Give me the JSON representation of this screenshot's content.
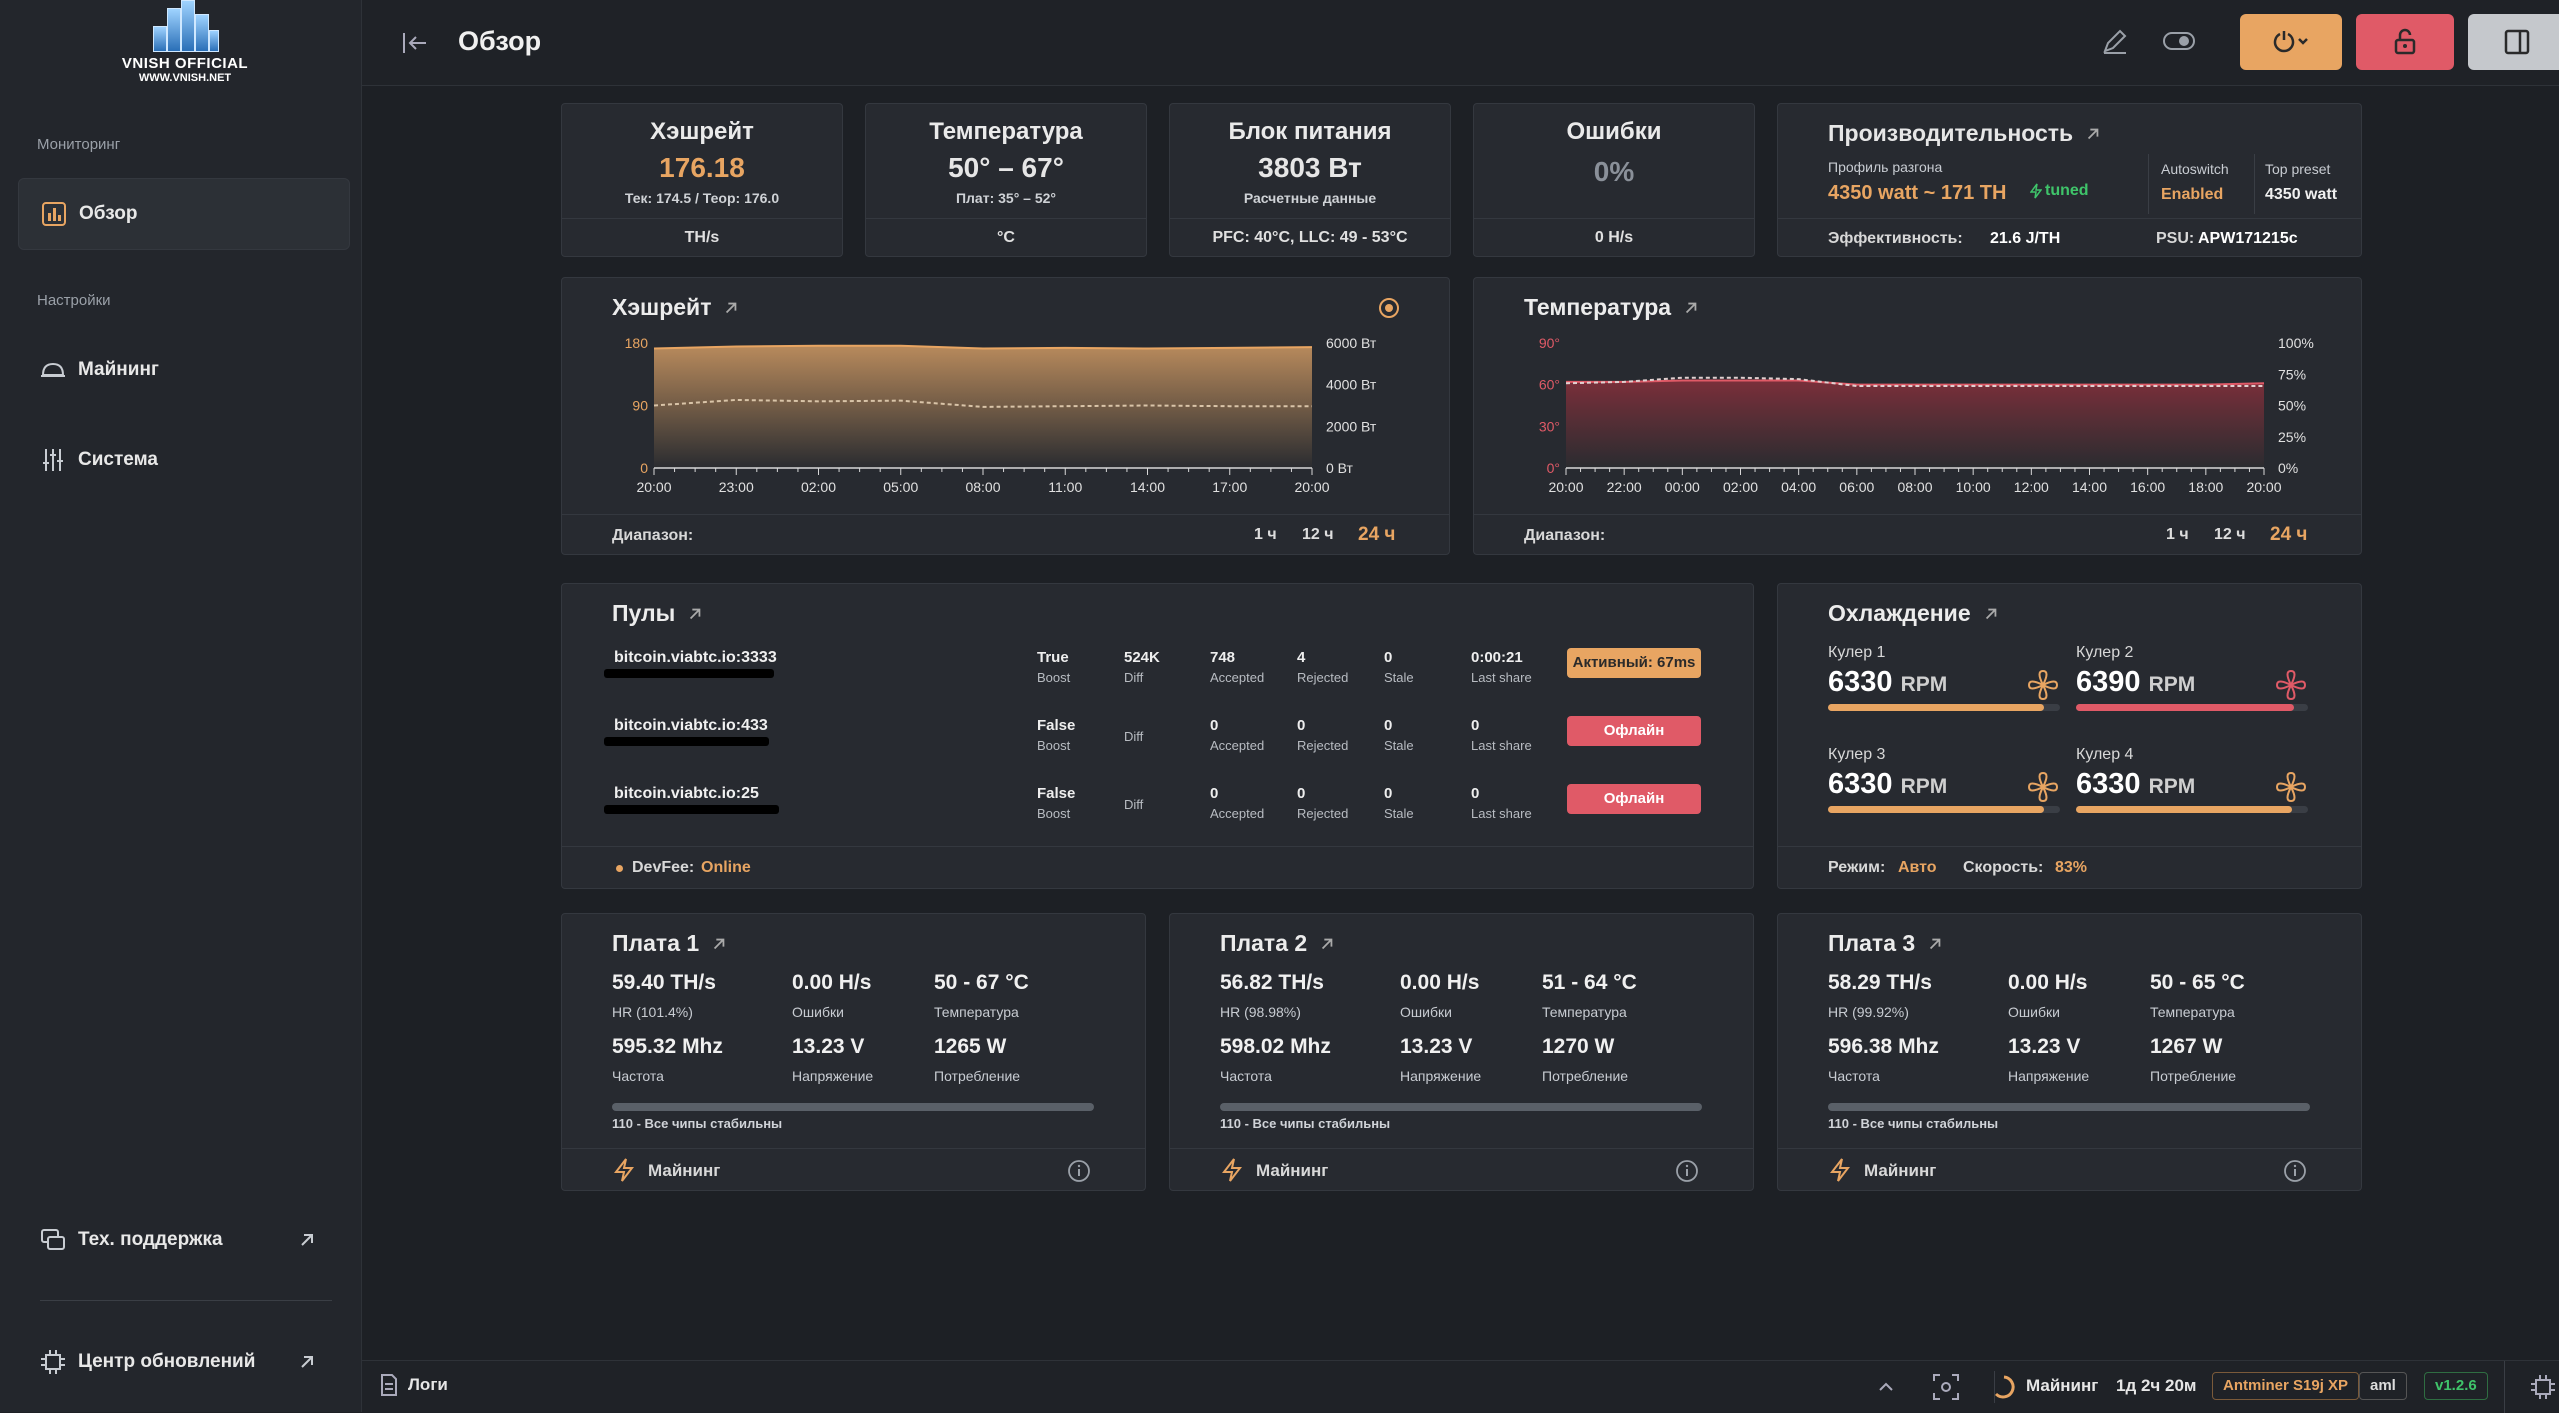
{
  "brand": {
    "logo_line1": "VNISH OFFICIAL",
    "logo_line2": "WWW.VNISH.NET"
  },
  "sidebar": {
    "section_monitoring": "Мониторинг",
    "section_settings": "Настройки",
    "items": [
      {
        "label": "Обзор"
      },
      {
        "label": "Майнинг"
      },
      {
        "label": "Система"
      }
    ],
    "support": "Тех. поддержка",
    "updates": "Центр обновлений"
  },
  "header": {
    "title": "Обзор"
  },
  "stats": {
    "hashrate": {
      "title": "Хэшрейт",
      "value": "176.18",
      "sub": "Тек: 174.5 / Теор: 176.0",
      "unit": "TH/s"
    },
    "temperature": {
      "title": "Температура",
      "value": "50° – 67°",
      "sub": "Плат: 35° – 52°",
      "unit": "°C"
    },
    "psu": {
      "title": "Блок питания",
      "value": "3803 Вт",
      "sub": "Расчетные данные",
      "foot": "PFC: 40°C, LLC: 49 - 53°C"
    },
    "errors": {
      "title": "Ошибки",
      "value": "0%",
      "unit": "0 H/s"
    },
    "perf": {
      "title": "Производительность",
      "profile_label": "Профиль разгона",
      "profile_value": "4350 watt ~ 171 TH",
      "tuned": "tuned",
      "autoswitch_label": "Autoswitch",
      "autoswitch_value": "Enabled",
      "preset_label": "Top preset",
      "preset_value": "4350 watt",
      "eff_label": "Эффективность:",
      "eff_value": "21.6 J/TH",
      "psu_label": "PSU:",
      "psu_value": "APW171215c"
    }
  },
  "hash_chart": {
    "title": "Хэшрейт",
    "y_left": [
      "180",
      "90",
      "0"
    ],
    "y_right": [
      "6000 Вт",
      "4000 Вт",
      "2000 Вт",
      "0 Вт"
    ],
    "x": [
      "20:00",
      "23:00",
      "02:00",
      "05:00",
      "08:00",
      "11:00",
      "14:00",
      "17:00",
      "20:00"
    ],
    "range_label": "Диапазон:",
    "ranges": [
      "1 ч",
      "12 ч",
      "24 ч"
    ]
  },
  "temp_chart": {
    "title": "Температура",
    "y_left": [
      "90°",
      "60°",
      "30°",
      "0°"
    ],
    "y_right": [
      "100%",
      "75%",
      "50%",
      "25%",
      "0%"
    ],
    "x": [
      "20:00",
      "22:00",
      "00:00",
      "02:00",
      "04:00",
      "06:00",
      "08:00",
      "10:00",
      "12:00",
      "14:00",
      "16:00",
      "18:00",
      "20:00"
    ],
    "range_label": "Диапазон:",
    "ranges": [
      "1 ч",
      "12 ч",
      "24 ч"
    ]
  },
  "chart_data": [
    {
      "type": "area",
      "title": "Хэшрейт",
      "categories": [
        "20:00",
        "23:00",
        "02:00",
        "05:00",
        "08:00",
        "11:00",
        "14:00",
        "17:00",
        "20:00"
      ],
      "series": [
        {
          "values": [
            172,
            175,
            176,
            176,
            172,
            173,
            172,
            173,
            174
          ]
        },
        {
          "values": [
            90,
            98,
            96,
            97,
            88,
            89,
            90,
            89,
            89
          ]
        }
      ],
      "ylim": [
        0,
        180
      ]
    },
    {
      "type": "area",
      "title": "Температура",
      "categories": [
        "20:00",
        "22:00",
        "00:00",
        "02:00",
        "04:00",
        "06:00",
        "08:00",
        "10:00",
        "12:00",
        "14:00",
        "16:00",
        "18:00",
        "20:00"
      ],
      "series": [
        {
          "values": [
            62,
            62,
            63,
            63,
            63,
            60,
            60,
            60,
            60,
            60,
            60,
            60,
            61
          ]
        },
        {
          "values": [
            61,
            62,
            65,
            65,
            64,
            59,
            59,
            59,
            59,
            59,
            59,
            59,
            59
          ]
        }
      ],
      "ylim": [
        0,
        90
      ]
    }
  ],
  "pools": {
    "title": "Пулы",
    "labels": {
      "boost": "Boost",
      "diff": "Diff",
      "accepted": "Accepted",
      "rejected": "Rejected",
      "stale": "Stale",
      "last_share": "Last share"
    },
    "rows": [
      {
        "host": "bitcoin.viabtc.io:3333",
        "boost": "True",
        "diff": "524K",
        "accepted": "748",
        "rejected": "4",
        "stale": "0",
        "last_share": "0:00:21",
        "status": "Активный: 67ms"
      },
      {
        "host": "bitcoin.viabtc.io:433",
        "boost": "False",
        "diff": "",
        "accepted": "0",
        "rejected": "0",
        "stale": "0",
        "last_share": "0",
        "status": "Офлайн"
      },
      {
        "host": "bitcoin.viabtc.io:25",
        "boost": "False",
        "diff": "",
        "accepted": "0",
        "rejected": "0",
        "stale": "0",
        "last_share": "0",
        "status": "Офлайн"
      }
    ],
    "devfee_label": "DevFee:",
    "devfee_value": "Online"
  },
  "cooling": {
    "title": "Охлаждение",
    "fans": [
      {
        "name": "Кулер 1",
        "rpm": "6330",
        "unit": "RPM",
        "level": 0.93
      },
      {
        "name": "Кулер 2",
        "rpm": "6390",
        "unit": "RPM",
        "level": 0.94
      },
      {
        "name": "Кулер 3",
        "rpm": "6330",
        "unit": "RPM",
        "level": 0.93
      },
      {
        "name": "Кулер 4",
        "rpm": "6330",
        "unit": "RPM",
        "level": 0.93
      }
    ],
    "mode_label": "Режим:",
    "mode_value": "Авто",
    "speed_label": "Скорость:",
    "speed_value": "83%"
  },
  "boards": [
    {
      "title": "Плата 1",
      "hr": "59.40 TH/s",
      "hr_label": "HR (101.4%)",
      "err": "0.00 H/s",
      "err_label": "Ошибки",
      "temp": "50 - 67 °C",
      "temp_label": "Температура",
      "freq": "595.32 Mhz",
      "freq_label": "Частота",
      "volt": "13.23 V",
      "volt_label": "Напряжение",
      "power": "1265 W",
      "power_label": "Потребление",
      "chips": "110 - Все чипы стабильны",
      "status": "Майнинг"
    },
    {
      "title": "Плата 2",
      "hr": "56.82 TH/s",
      "hr_label": "HR (98.98%)",
      "err": "0.00 H/s",
      "err_label": "Ошибки",
      "temp": "51 - 64 °C",
      "temp_label": "Температура",
      "freq": "598.02 Mhz",
      "freq_label": "Частота",
      "volt": "13.23 V",
      "volt_label": "Напряжение",
      "power": "1270 W",
      "power_label": "Потребление",
      "chips": "110 - Все чипы стабильны",
      "status": "Майнинг"
    },
    {
      "title": "Плата 3",
      "hr": "58.29 TH/s",
      "hr_label": "HR (99.92%)",
      "err": "0.00 H/s",
      "err_label": "Ошибки",
      "temp": "50 - 65 °C",
      "temp_label": "Температура",
      "freq": "596.38 Mhz",
      "freq_label": "Частота",
      "volt": "13.23 V",
      "volt_label": "Напряжение",
      "power": "1267 W",
      "power_label": "Потребление",
      "chips": "110 - Все чипы стабильны",
      "status": "Майнинг"
    }
  ],
  "bottom": {
    "logs": "Логи",
    "status": "Майнинг",
    "uptime": "1д 2ч 20м",
    "model": "Antminer S19j XP",
    "fw": "aml",
    "version": "v1.2.6"
  },
  "colors": {
    "accent": "#e8a562",
    "danger": "#e05a67",
    "success": "#3fc46a"
  }
}
